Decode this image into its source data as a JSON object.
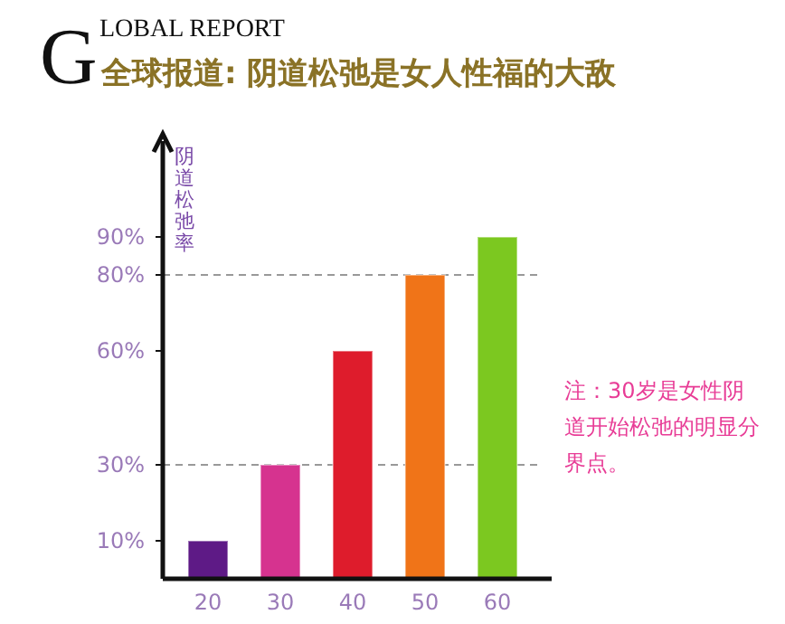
{
  "chart_data": {
    "type": "bar",
    "title": "全球报道: 阴道松弛是女人性福的大敌",
    "subtitle": "GLOBAL REPORT",
    "ylabel": "阴道松弛率",
    "categories": [
      "20",
      "30",
      "40",
      "50",
      "60"
    ],
    "values": [
      10,
      30,
      60,
      80,
      90
    ],
    "colors": [
      "#5e1a86",
      "#d6338f",
      "#de1c2c",
      "#f07418",
      "#7cc820"
    ],
    "ylim": [
      0,
      100
    ],
    "yticks": [
      {
        "value": 10,
        "label": "10%"
      },
      {
        "value": 30,
        "label": "30%"
      },
      {
        "value": 60,
        "label": "60%"
      },
      {
        "value": 80,
        "label": "80%"
      },
      {
        "value": 90,
        "label": "90%"
      }
    ],
    "ref_lines": [
      {
        "axis": "y",
        "value": 30,
        "line_style": "dashed",
        "color": "#999999"
      },
      {
        "axis": "y",
        "value": 80,
        "line_style": "dashed",
        "color": "#999999"
      }
    ],
    "annotations": [
      "注：30岁是女性阴道开始松弛的明显分界点。"
    ],
    "grid": false
  }
}
